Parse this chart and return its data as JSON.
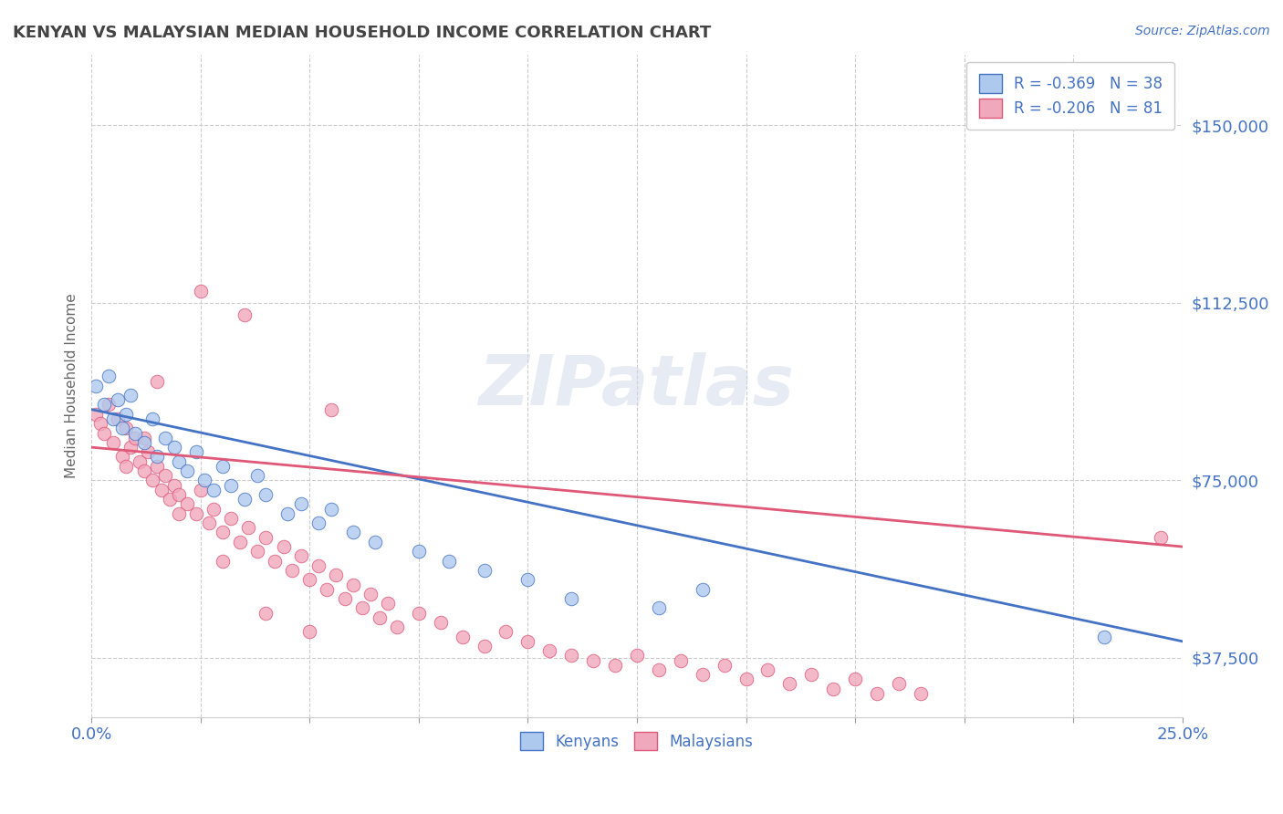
{
  "title": "KENYAN VS MALAYSIAN MEDIAN HOUSEHOLD INCOME CORRELATION CHART",
  "source": "Source: ZipAtlas.com",
  "ylabel": "Median Household Income",
  "yticks": [
    37500,
    75000,
    112500,
    150000
  ],
  "ytick_labels": [
    "$37,500",
    "$75,000",
    "$112,500",
    "$150,000"
  ],
  "xlim": [
    0.0,
    0.25
  ],
  "ylim": [
    25000,
    165000
  ],
  "kenyan_color": "#adc9ee",
  "malaysian_color": "#f0a8bc",
  "kenyan_line_color": "#4472c4",
  "malaysian_line_color": "#e05878",
  "kenyan_R": -0.369,
  "kenyan_N": 38,
  "malaysian_R": -0.206,
  "malaysian_N": 81,
  "legend_label_kenyan": "Kenyans",
  "legend_label_malaysian": "Malaysians",
  "watermark": "ZIPatlas",
  "background_color": "#ffffff",
  "grid_color": "#cccccc",
  "title_color": "#444444",
  "axis_label_color": "#4472c4",
  "kenyan_line_y0": 90000,
  "kenyan_line_y1": 41000,
  "malaysian_line_y0": 82000,
  "malaysian_line_y1": 61000,
  "kenyan_x": [
    0.001,
    0.003,
    0.004,
    0.005,
    0.006,
    0.007,
    0.008,
    0.009,
    0.01,
    0.012,
    0.014,
    0.015,
    0.017,
    0.019,
    0.02,
    0.022,
    0.024,
    0.026,
    0.028,
    0.03,
    0.032,
    0.035,
    0.038,
    0.04,
    0.045,
    0.048,
    0.052,
    0.055,
    0.06,
    0.065,
    0.075,
    0.082,
    0.09,
    0.1,
    0.11,
    0.13,
    0.14,
    0.232
  ],
  "kenyan_y": [
    95000,
    91000,
    97000,
    88000,
    92000,
    86000,
    89000,
    93000,
    85000,
    83000,
    88000,
    80000,
    84000,
    82000,
    79000,
    77000,
    81000,
    75000,
    73000,
    78000,
    74000,
    71000,
    76000,
    72000,
    68000,
    70000,
    66000,
    69000,
    64000,
    62000,
    60000,
    58000,
    56000,
    54000,
    50000,
    48000,
    52000,
    42000
  ],
  "malaysian_x": [
    0.001,
    0.002,
    0.003,
    0.004,
    0.005,
    0.006,
    0.007,
    0.008,
    0.009,
    0.01,
    0.011,
    0.012,
    0.013,
    0.014,
    0.015,
    0.016,
    0.017,
    0.018,
    0.019,
    0.02,
    0.022,
    0.024,
    0.025,
    0.027,
    0.028,
    0.03,
    0.032,
    0.034,
    0.036,
    0.038,
    0.04,
    0.042,
    0.044,
    0.046,
    0.048,
    0.05,
    0.052,
    0.054,
    0.056,
    0.058,
    0.06,
    0.062,
    0.064,
    0.066,
    0.068,
    0.07,
    0.075,
    0.08,
    0.085,
    0.09,
    0.095,
    0.1,
    0.105,
    0.11,
    0.115,
    0.12,
    0.125,
    0.13,
    0.135,
    0.14,
    0.145,
    0.15,
    0.155,
    0.16,
    0.165,
    0.17,
    0.175,
    0.18,
    0.185,
    0.19,
    0.025,
    0.035,
    0.055,
    0.015,
    0.008,
    0.012,
    0.02,
    0.03,
    0.04,
    0.05,
    0.245
  ],
  "malaysian_y": [
    89000,
    87000,
    85000,
    91000,
    83000,
    88000,
    80000,
    86000,
    82000,
    84000,
    79000,
    77000,
    81000,
    75000,
    78000,
    73000,
    76000,
    71000,
    74000,
    72000,
    70000,
    68000,
    73000,
    66000,
    69000,
    64000,
    67000,
    62000,
    65000,
    60000,
    63000,
    58000,
    61000,
    56000,
    59000,
    54000,
    57000,
    52000,
    55000,
    50000,
    53000,
    48000,
    51000,
    46000,
    49000,
    44000,
    47000,
    45000,
    42000,
    40000,
    43000,
    41000,
    39000,
    38000,
    37000,
    36000,
    38000,
    35000,
    37000,
    34000,
    36000,
    33000,
    35000,
    32000,
    34000,
    31000,
    33000,
    30000,
    32000,
    30000,
    115000,
    110000,
    90000,
    96000,
    78000,
    84000,
    68000,
    58000,
    47000,
    43000,
    63000
  ]
}
